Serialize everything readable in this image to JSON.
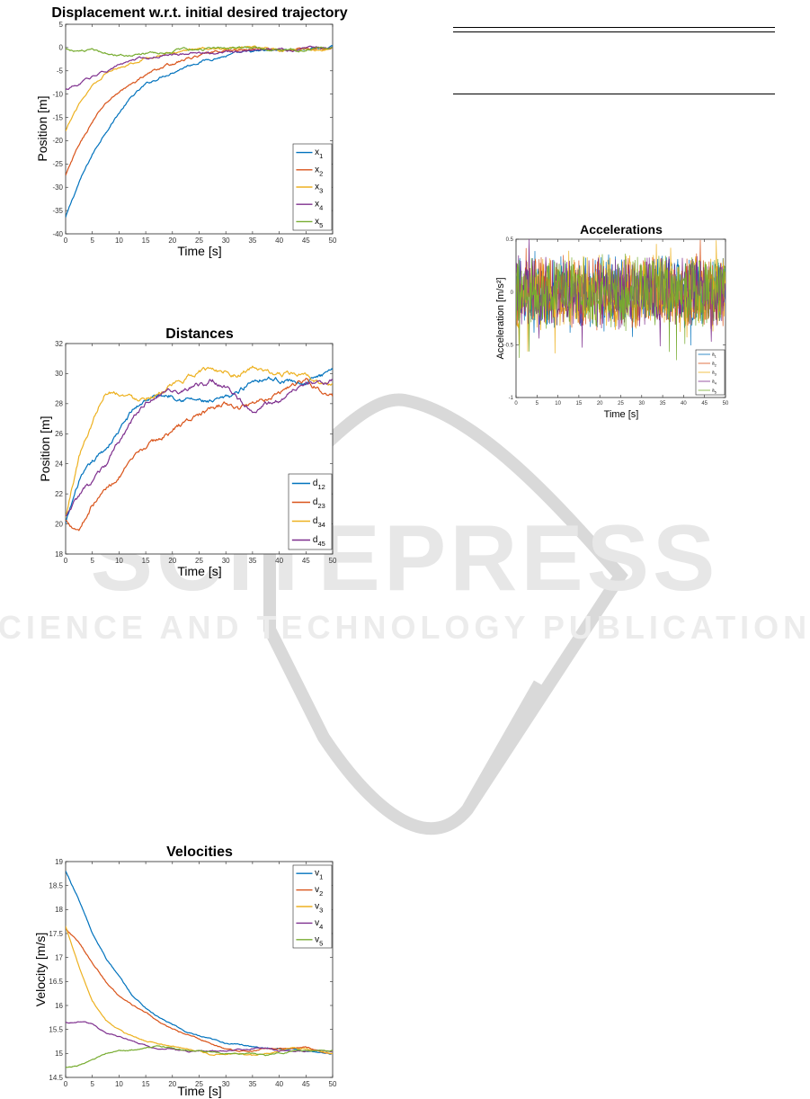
{
  "watermark": {
    "line1": "SCITEPRESS",
    "line2": "SCIENCE AND TECHNOLOGY PUBLICATIONS",
    "color": "#d9d9d9"
  },
  "series_colors": [
    "#0072BD",
    "#D95319",
    "#EDB120",
    "#7E2F8E",
    "#77AC30"
  ],
  "chart_data": [
    {
      "type": "line",
      "title": "Displacement w.r.t. initial desired trajectory",
      "xlabel": "Time [s]",
      "ylabel": "Position [m]",
      "xlim": [
        0,
        50
      ],
      "ylim": [
        -40,
        5
      ],
      "xticks": [
        0,
        5,
        10,
        15,
        20,
        25,
        30,
        35,
        40,
        45,
        50
      ],
      "yticks": [
        -40,
        -35,
        -30,
        -25,
        -20,
        -15,
        -10,
        -5,
        0,
        5
      ],
      "legend_position": "bottom-right",
      "x": [
        0,
        2.5,
        5,
        7.5,
        10,
        12.5,
        15,
        17.5,
        20,
        22.5,
        25,
        27.5,
        30,
        32.5,
        35,
        37.5,
        40,
        42.5,
        45,
        47.5,
        50
      ],
      "series": [
        {
          "name": "x",
          "sub": "1",
          "values": [
            -36.5,
            -29,
            -23,
            -18,
            -14,
            -10.5,
            -8,
            -6.5,
            -5.2,
            -4,
            -3,
            -2.3,
            -1.8,
            -1.3,
            -1,
            -0.8,
            -0.6,
            -0.4,
            -0.3,
            -0.2,
            0
          ]
        },
        {
          "name": "x",
          "sub": "2",
          "values": [
            -27.5,
            -21,
            -16,
            -12,
            -9.5,
            -7.8,
            -5.8,
            -4.5,
            -3.5,
            -2.5,
            -1.8,
            -1.2,
            -0.7,
            -0.5,
            -0.4,
            -0.3,
            -0.5,
            -0.4,
            -0.3,
            -0.2,
            -0.3
          ]
        },
        {
          "name": "x",
          "sub": "3",
          "values": [
            -18,
            -12,
            -8,
            -5.5,
            -4.2,
            -3.2,
            -2.2,
            -1.6,
            -1.2,
            -0.6,
            -0.2,
            0,
            -0.3,
            -0.4,
            -0.2,
            -0.2,
            -0.5,
            -0.3,
            -0.4,
            -0.5,
            -0.3
          ]
        },
        {
          "name": "x",
          "sub": "4",
          "values": [
            -9,
            -8,
            -6.2,
            -5,
            -3.8,
            -2.6,
            -2.2,
            -1.7,
            -1.4,
            -1.2,
            -1.2,
            -1.3,
            -1,
            -0.8,
            -0.5,
            -0.5,
            -0.4,
            -0.6,
            -0.3,
            -0.2,
            0
          ]
        },
        {
          "name": "x",
          "sub": "5",
          "values": [
            -0.2,
            -0.8,
            -0.8,
            -1.2,
            -1.4,
            -1.5,
            -1.3,
            -1,
            -0.7,
            -0.5,
            -0.4,
            -0.2,
            0,
            0.1,
            -0.1,
            -0.3,
            -0.4,
            -0.5,
            -0.4,
            -0.3,
            -0.1
          ]
        }
      ]
    },
    {
      "type": "line",
      "title": "Distances",
      "xlabel": "Time [s]",
      "ylabel": "Position [m]",
      "xlim": [
        0,
        50
      ],
      "ylim": [
        18,
        32
      ],
      "xticks": [
        0,
        5,
        10,
        15,
        20,
        25,
        30,
        35,
        40,
        45,
        50
      ],
      "yticks": [
        18,
        20,
        22,
        24,
        26,
        28,
        30,
        32
      ],
      "legend_position": "bottom-right",
      "x": [
        0,
        2.5,
        5,
        7.5,
        10,
        12.5,
        15,
        17.5,
        20,
        22.5,
        25,
        27.5,
        30,
        32.5,
        35,
        37.5,
        40,
        42.5,
        45,
        47.5,
        50
      ],
      "series": [
        {
          "name": "d",
          "sub": "12",
          "values": [
            20,
            22.8,
            24,
            25,
            26.2,
            27.5,
            28.3,
            28.5,
            28.6,
            28.4,
            28.2,
            28,
            28.3,
            28.8,
            29.6,
            29.8,
            29.6,
            29.5,
            29.4,
            29.8,
            30
          ]
        },
        {
          "name": "d",
          "sub": "23",
          "values": [
            20.2,
            19.7,
            21.3,
            22.3,
            23.2,
            24.1,
            25.1,
            25.6,
            26.2,
            26.8,
            27.3,
            27.6,
            28,
            27.6,
            28.1,
            28.4,
            28.8,
            29.3,
            29.6,
            29,
            28.4
          ]
        },
        {
          "name": "d",
          "sub": "34",
          "values": [
            20.4,
            24.5,
            26.8,
            28.9,
            28.8,
            28.4,
            28.5,
            28.8,
            29.1,
            29.6,
            30.2,
            30.3,
            30.2,
            30,
            30.4,
            30,
            29.9,
            30,
            29.7,
            29.4,
            29.2
          ]
        },
        {
          "name": "d",
          "sub": "45",
          "values": [
            20.5,
            21.8,
            22.8,
            23.8,
            25.4,
            26.9,
            28,
            28.6,
            28.8,
            28.9,
            29.2,
            29.6,
            29.1,
            28.2,
            27.6,
            28,
            28.3,
            29,
            29.5,
            29.3,
            29.5
          ]
        }
      ]
    },
    {
      "type": "line",
      "title": "Velocities",
      "xlabel": "Time [s]",
      "ylabel": "Velocity [m/s]",
      "xlim": [
        0,
        50
      ],
      "ylim": [
        14.5,
        19
      ],
      "xticks": [
        0,
        5,
        10,
        15,
        20,
        25,
        30,
        35,
        40,
        45,
        50
      ],
      "yticks": [
        14.5,
        15,
        15.5,
        16,
        16.5,
        17,
        17.5,
        18,
        18.5,
        19
      ],
      "legend_position": "top-right",
      "x": [
        0,
        2.5,
        5,
        7.5,
        10,
        12.5,
        15,
        17.5,
        20,
        22.5,
        25,
        27.5,
        30,
        32.5,
        35,
        37.5,
        40,
        42.5,
        45,
        47.5,
        50
      ],
      "series": [
        {
          "name": "v",
          "sub": "1",
          "values": [
            18.8,
            18.2,
            17.5,
            17,
            16.6,
            16.2,
            15.95,
            15.75,
            15.6,
            15.45,
            15.35,
            15.28,
            15.22,
            15.18,
            15.15,
            15.12,
            15.1,
            15.08,
            15.05,
            15.02,
            15
          ]
        },
        {
          "name": "v",
          "sub": "2",
          "values": [
            17.6,
            17.3,
            16.9,
            16.5,
            16.2,
            16,
            15.85,
            15.65,
            15.5,
            15.4,
            15.3,
            15.2,
            15.1,
            15.05,
            15.05,
            15.1,
            15.1,
            15.1,
            15.15,
            15.05,
            15
          ]
        },
        {
          "name": "v",
          "sub": "3",
          "values": [
            17.65,
            16.8,
            16.1,
            15.7,
            15.5,
            15.35,
            15.25,
            15.2,
            15.15,
            15.1,
            15.05,
            14.95,
            15,
            15,
            14.95,
            15,
            15.05,
            15.1,
            15.1,
            15.05,
            15
          ]
        },
        {
          "name": "v",
          "sub": "4",
          "values": [
            15.65,
            15.65,
            15.6,
            15.45,
            15.35,
            15.25,
            15.15,
            15.1,
            15.1,
            15.05,
            15.05,
            15.05,
            15.05,
            15.1,
            15.1,
            15.1,
            15.05,
            15.05,
            15.05,
            15.05,
            15.05
          ]
        },
        {
          "name": "v",
          "sub": "5",
          "values": [
            14.7,
            14.75,
            14.85,
            15,
            15.05,
            15.08,
            15.12,
            15.15,
            15.1,
            15.05,
            15.05,
            15.05,
            15,
            15,
            15,
            14.95,
            15,
            15.05,
            15.05,
            15.05,
            15.05
          ]
        }
      ]
    },
    {
      "type": "line",
      "title": "Accelerations",
      "xlabel": "Time [s]",
      "ylabel": "Acceleration [m/s²]",
      "xlim": [
        0,
        50
      ],
      "ylim": [
        -1,
        0.5
      ],
      "xticks": [
        0,
        5,
        10,
        15,
        20,
        25,
        30,
        35,
        40,
        45,
        50
      ],
      "yticks": [
        -1,
        -0.5,
        0,
        0.5
      ],
      "legend_position": "bottom-right",
      "noise_band": [
        -0.6,
        0.45
      ],
      "series": [
        {
          "name": "a",
          "sub": "1"
        },
        {
          "name": "a",
          "sub": "2"
        },
        {
          "name": "a",
          "sub": "3"
        },
        {
          "name": "a",
          "sub": "4"
        },
        {
          "name": "a",
          "sub": "5"
        }
      ]
    }
  ],
  "table_rules": {
    "count": 3
  }
}
